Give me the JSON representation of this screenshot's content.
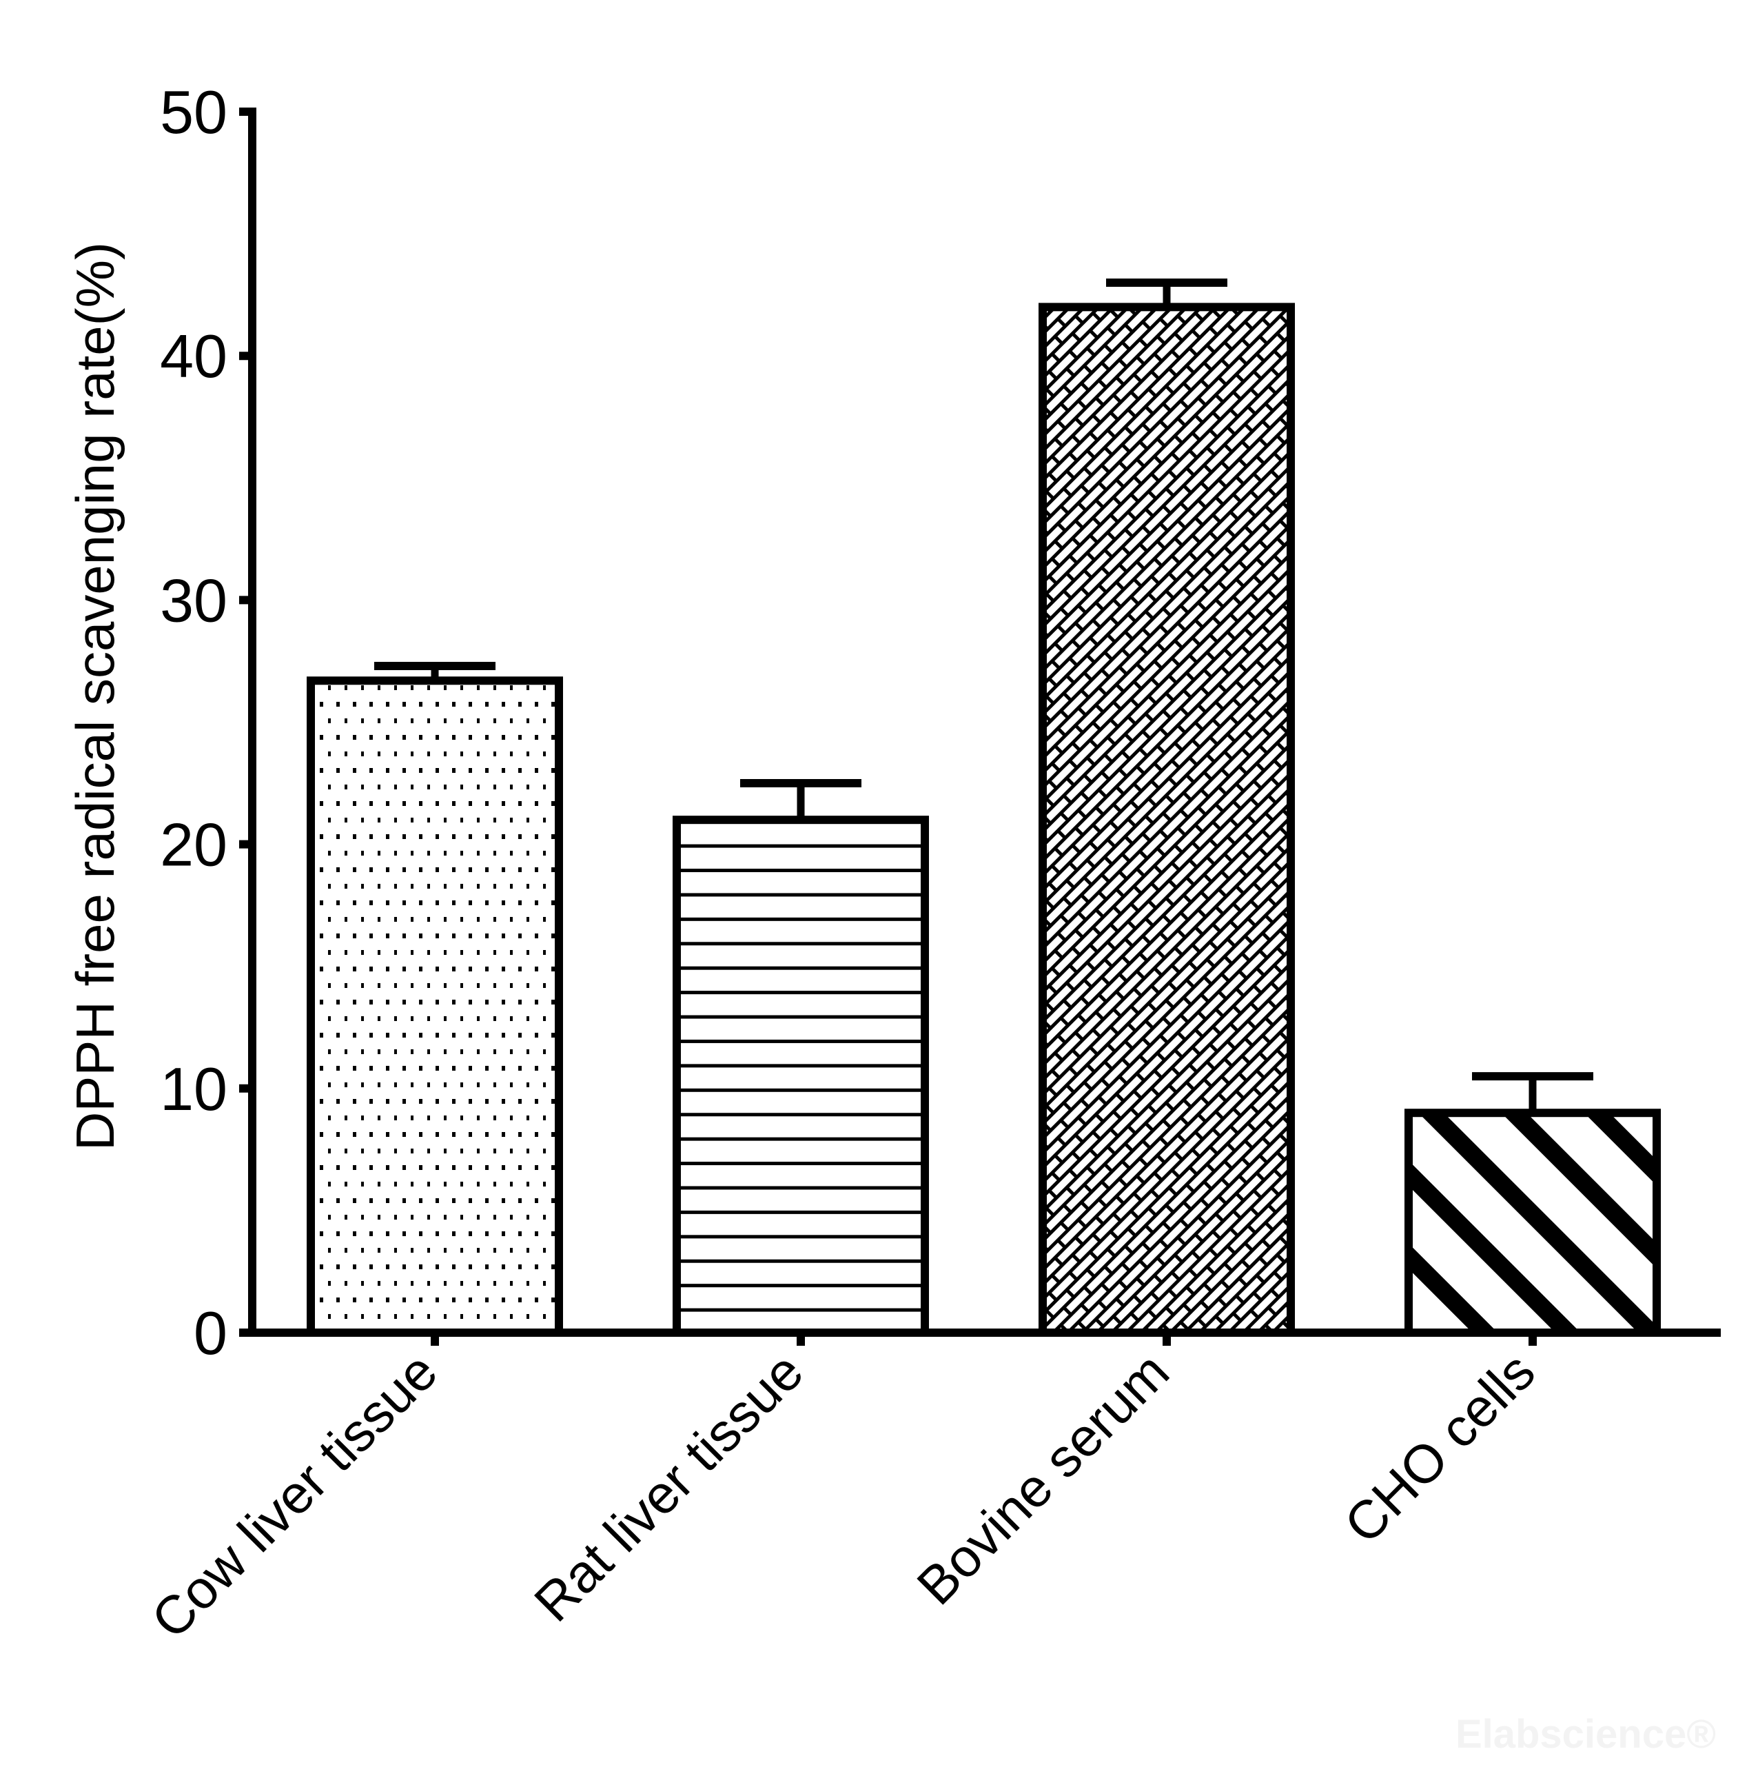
{
  "chart_data": {
    "type": "bar",
    "title": "",
    "xlabel": "",
    "ylabel": "DPPH free radical scavenging rate(%)",
    "ylim": [
      0,
      50
    ],
    "yticks": [
      "0",
      "10",
      "20",
      "30",
      "40",
      "50"
    ],
    "grid": false,
    "categories": [
      "Cow liver tissue",
      "Rat liver tissue",
      "Bovine serum",
      "CHO cells"
    ],
    "values": [
      26.7,
      21.0,
      42.0,
      9.0
    ],
    "error_upper": [
      27.3,
      22.5,
      43.0,
      10.5
    ],
    "fill_patterns": [
      "dots",
      "horizontal-lines",
      "brick-diagonal",
      "diagonal-stripes"
    ],
    "colors": {
      "stroke": "#000000",
      "background": "#ffffff",
      "watermark": "#f3f3f3"
    }
  },
  "watermark": "Elabscience®"
}
